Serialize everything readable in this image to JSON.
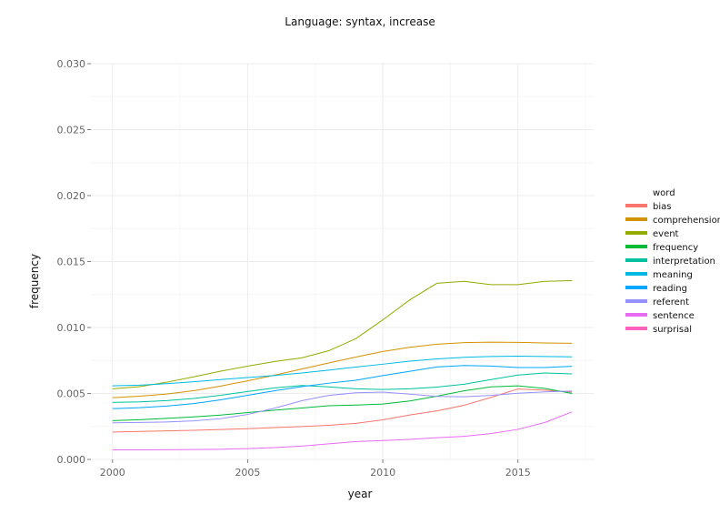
{
  "chart_data": {
    "type": "line",
    "title": "Language: syntax, increase",
    "xlabel": "year",
    "ylabel": "frequency",
    "xlim": [
      1999.2,
      2017.8
    ],
    "ylim": [
      0,
      0.03
    ],
    "xticks": [
      2000,
      2005,
      2010,
      2015
    ],
    "xtick_labels": [
      "2000",
      "2005",
      "2010",
      "2015"
    ],
    "yticks": [
      0,
      0.005,
      0.01,
      0.015,
      0.02,
      0.025,
      0.03
    ],
    "ytick_labels": [
      "0.000",
      "0.005",
      "0.010",
      "0.015",
      "0.020",
      "0.025",
      "0.030"
    ],
    "grid": true,
    "legend": {
      "title": "word",
      "position": "right"
    },
    "x": [
      2000,
      2001,
      2002,
      2003,
      2004,
      2005,
      2006,
      2007,
      2008,
      2009,
      2010,
      2011,
      2012,
      2013,
      2014,
      2015,
      2016,
      2017
    ],
    "series": [
      {
        "name": "bias",
        "color": "#F8766D",
        "values": [
          0.00207,
          0.00212,
          0.00216,
          0.00221,
          0.00227,
          0.00233,
          0.00241,
          0.00249,
          0.00259,
          0.00273,
          0.003,
          0.00337,
          0.00368,
          0.0041,
          0.0047,
          0.00534,
          0.00525,
          0.0051
        ]
      },
      {
        "name": "comprehension",
        "color": "#D39200",
        "values": [
          0.00468,
          0.00479,
          0.00496,
          0.00521,
          0.00556,
          0.00596,
          0.00639,
          0.00685,
          0.00731,
          0.00776,
          0.00818,
          0.0085,
          0.00873,
          0.00885,
          0.00889,
          0.00887,
          0.00883,
          0.0088
        ]
      },
      {
        "name": "event",
        "color": "#93AA00",
        "values": [
          0.00535,
          0.00552,
          0.00585,
          0.00626,
          0.00669,
          0.00707,
          0.00742,
          0.0077,
          0.00824,
          0.00915,
          0.01058,
          0.0121,
          0.01335,
          0.0135,
          0.01325,
          0.01325,
          0.0135,
          0.01355
        ]
      },
      {
        "name": "frequency",
        "color": "#00BA38",
        "values": [
          0.00294,
          0.00301,
          0.00311,
          0.00322,
          0.00336,
          0.00355,
          0.00373,
          0.0039,
          0.00407,
          0.00412,
          0.0042,
          0.00443,
          0.00479,
          0.0052,
          0.0055,
          0.00558,
          0.00538,
          0.005
        ]
      },
      {
        "name": "interpretation",
        "color": "#00C19F",
        "values": [
          0.00432,
          0.00436,
          0.00446,
          0.00462,
          0.00486,
          0.00515,
          0.00542,
          0.0056,
          0.0055,
          0.00535,
          0.0053,
          0.00535,
          0.00548,
          0.0057,
          0.00605,
          0.0064,
          0.00655,
          0.00648
        ]
      },
      {
        "name": "meaning",
        "color": "#00B9E3",
        "values": [
          0.00558,
          0.00563,
          0.00574,
          0.00589,
          0.00605,
          0.00621,
          0.00636,
          0.00655,
          0.00677,
          0.007,
          0.00722,
          0.00745,
          0.00762,
          0.00774,
          0.0078,
          0.00783,
          0.0078,
          0.00778
        ]
      },
      {
        "name": "reading",
        "color": "#00A5FF",
        "values": [
          0.00385,
          0.00392,
          0.00404,
          0.00423,
          0.00452,
          0.00486,
          0.00521,
          0.00552,
          0.00578,
          0.006,
          0.00635,
          0.00668,
          0.00701,
          0.00712,
          0.00708,
          0.00697,
          0.00697,
          0.00706
        ]
      },
      {
        "name": "referent",
        "color": "#9590FF",
        "values": [
          0.00277,
          0.0028,
          0.00284,
          0.00292,
          0.00309,
          0.00341,
          0.00389,
          0.00445,
          0.00485,
          0.00505,
          0.0051,
          0.00495,
          0.00478,
          0.00475,
          0.00485,
          0.00502,
          0.00512,
          0.00518
        ]
      },
      {
        "name": "sentence",
        "color": "#E76BF3",
        "values": [
          0.00072,
          0.00072,
          0.00073,
          0.00075,
          0.00077,
          0.00082,
          0.0009,
          0.00101,
          0.00118,
          0.00135,
          0.00143,
          0.00152,
          0.00165,
          0.00175,
          0.00196,
          0.00228,
          0.0028,
          0.0036
        ]
      },
      {
        "name": "surprisal",
        "color": "#FF62BC",
        "values": [
          null,
          null,
          null,
          null,
          null,
          null,
          null,
          null,
          null,
          null,
          null,
          null,
          null,
          null,
          null,
          null,
          null,
          null
        ]
      }
    ]
  }
}
